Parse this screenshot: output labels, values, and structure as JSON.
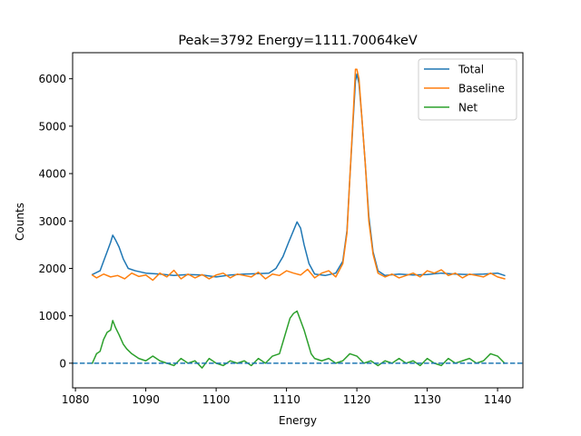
{
  "chart_data": {
    "type": "line",
    "title": "Peak=3792 Energy=1111.70064keV",
    "xlabel": "Energy",
    "ylabel": "Counts",
    "xlim": [
      1079.6,
      1143.6
    ],
    "ylim": [
      -520,
      6550
    ],
    "xticks": [
      1080,
      1090,
      1100,
      1110,
      1120,
      1130,
      1140
    ],
    "yticks": [
      0,
      1000,
      2000,
      3000,
      4000,
      5000,
      6000
    ],
    "grid": false,
    "legend_position": "top-right",
    "reference_line": {
      "y": 0,
      "style": "dashed",
      "color": "#1f77b4"
    },
    "series": [
      {
        "name": "Total",
        "color": "#1f77b4",
        "x": [
          1082.4,
          1083.5,
          1084.0,
          1084.5,
          1085.0,
          1085.3,
          1085.7,
          1086.2,
          1086.8,
          1087.5,
          1088.5,
          1090.0,
          1092.0,
          1094.0,
          1096.0,
          1098.0,
          1100.0,
          1102.0,
          1104.0,
          1106.0,
          1107.5,
          1108.5,
          1109.5,
          1110.3,
          1111.0,
          1111.5,
          1112.0,
          1112.5,
          1113.2,
          1114.0,
          1115.5,
          1117.0,
          1118.0,
          1118.6,
          1119.0,
          1119.5,
          1119.8,
          1120.0,
          1120.3,
          1120.7,
          1121.2,
          1121.7,
          1122.3,
          1123.0,
          1124.0,
          1126.0,
          1128.0,
          1130.0,
          1132.0,
          1134.0,
          1136.0,
          1138.0,
          1140.0,
          1141.0
        ],
        "y": [
          1870,
          1950,
          2150,
          2350,
          2550,
          2700,
          2600,
          2450,
          2200,
          2000,
          1950,
          1900,
          1880,
          1850,
          1870,
          1860,
          1820,
          1860,
          1880,
          1890,
          1900,
          2000,
          2250,
          2550,
          2800,
          2980,
          2850,
          2500,
          2100,
          1880,
          1850,
          1900,
          2150,
          2800,
          3900,
          5200,
          5950,
          6100,
          5900,
          5200,
          4200,
          3100,
          2350,
          1950,
          1850,
          1880,
          1860,
          1870,
          1900,
          1880,
          1870,
          1880,
          1900,
          1850
        ]
      },
      {
        "name": "Baseline",
        "color": "#ff7f0e",
        "x": [
          1082.4,
          1083.0,
          1084.0,
          1085.0,
          1086.0,
          1087.0,
          1088.0,
          1089.0,
          1090.0,
          1091.0,
          1092.0,
          1093.0,
          1094.0,
          1095.0,
          1096.0,
          1097.0,
          1098.0,
          1099.0,
          1100.0,
          1101.0,
          1102.0,
          1103.0,
          1104.0,
          1105.0,
          1106.0,
          1107.0,
          1108.0,
          1109.0,
          1110.0,
          1111.0,
          1112.0,
          1113.0,
          1114.0,
          1115.0,
          1116.0,
          1117.0,
          1118.0,
          1118.6,
          1119.0,
          1119.5,
          1119.8,
          1120.0,
          1120.3,
          1120.7,
          1121.2,
          1121.7,
          1122.3,
          1123.0,
          1124.0,
          1125.0,
          1126.0,
          1127.0,
          1128.0,
          1129.0,
          1130.0,
          1131.0,
          1132.0,
          1133.0,
          1134.0,
          1135.0,
          1136.0,
          1137.0,
          1138.0,
          1139.0,
          1140.0,
          1141.0
        ],
        "y": [
          1860,
          1800,
          1880,
          1820,
          1850,
          1780,
          1900,
          1830,
          1860,
          1750,
          1900,
          1820,
          1960,
          1780,
          1880,
          1800,
          1870,
          1780,
          1860,
          1900,
          1800,
          1880,
          1850,
          1820,
          1920,
          1780,
          1880,
          1850,
          1950,
          1900,
          1860,
          1980,
          1800,
          1900,
          1950,
          1820,
          2100,
          2750,
          3900,
          5300,
          6200,
          6200,
          6000,
          5200,
          4200,
          3000,
          2300,
          1900,
          1820,
          1880,
          1800,
          1850,
          1900,
          1820,
          1950,
          1900,
          1970,
          1850,
          1900,
          1800,
          1880,
          1850,
          1820,
          1900,
          1820,
          1780
        ]
      },
      {
        "name": "Net",
        "color": "#2ca02c",
        "x": [
          1082.4,
          1083.0,
          1083.5,
          1084.0,
          1084.5,
          1085.0,
          1085.3,
          1085.7,
          1086.2,
          1086.8,
          1087.3,
          1088.0,
          1089.0,
          1090.0,
          1091.0,
          1092.0,
          1093.0,
          1094.0,
          1095.0,
          1096.0,
          1097.0,
          1098.0,
          1099.0,
          1100.0,
          1101.0,
          1102.0,
          1103.0,
          1104.0,
          1105.0,
          1106.0,
          1107.0,
          1108.0,
          1109.0,
          1109.5,
          1110.0,
          1110.5,
          1111.0,
          1111.5,
          1112.0,
          1112.5,
          1113.0,
          1113.5,
          1114.0,
          1115.0,
          1116.0,
          1117.0,
          1118.0,
          1119.0,
          1120.0,
          1121.0,
          1122.0,
          1123.0,
          1124.0,
          1125.0,
          1126.0,
          1127.0,
          1128.0,
          1129.0,
          1130.0,
          1131.0,
          1132.0,
          1133.0,
          1134.0,
          1135.0,
          1136.0,
          1137.0,
          1138.0,
          1139.0,
          1140.0,
          1141.0
        ],
        "y": [
          0,
          200,
          250,
          500,
          650,
          700,
          900,
          750,
          600,
          400,
          300,
          200,
          100,
          50,
          150,
          50,
          0,
          -50,
          100,
          0,
          50,
          -100,
          100,
          0,
          -50,
          50,
          0,
          50,
          -50,
          100,
          0,
          150,
          200,
          450,
          700,
          950,
          1050,
          1100,
          900,
          700,
          450,
          200,
          100,
          50,
          100,
          0,
          50,
          200,
          150,
          0,
          50,
          -50,
          50,
          0,
          100,
          0,
          50,
          -50,
          100,
          0,
          -50,
          100,
          0,
          50,
          100,
          0,
          50,
          200,
          150,
          0
        ]
      }
    ]
  }
}
